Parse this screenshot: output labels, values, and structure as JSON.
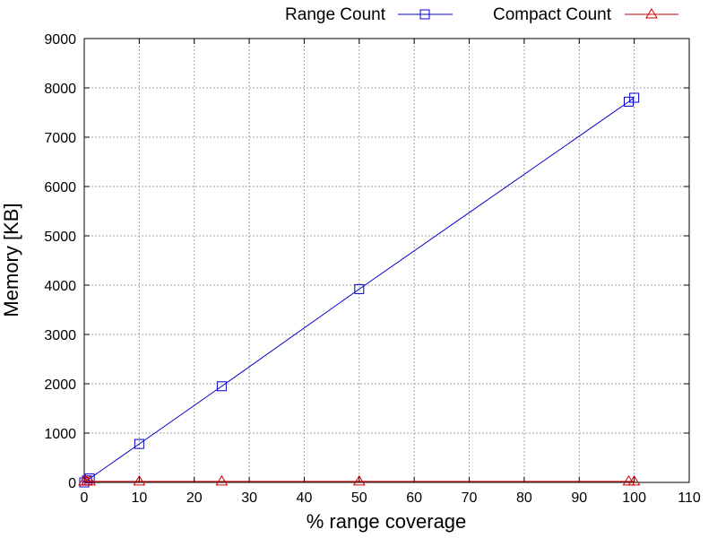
{
  "chart_data": {
    "type": "line",
    "xlabel": "% range coverage",
    "ylabel": "Memory [KB]",
    "xlim": [
      0,
      110
    ],
    "ylim": [
      0,
      9000
    ],
    "x_ticks": [
      0,
      10,
      20,
      30,
      40,
      50,
      60,
      70,
      80,
      90,
      100,
      110
    ],
    "y_ticks": [
      0,
      1000,
      2000,
      3000,
      4000,
      5000,
      6000,
      7000,
      8000,
      9000
    ],
    "grid": true,
    "legend_position": "top-outside",
    "series": [
      {
        "name": "Range Count",
        "color": "#0000cc",
        "marker": "square",
        "x": [
          0,
          0.5,
          1,
          10,
          25,
          50,
          99,
          100
        ],
        "y": [
          0,
          40,
          80,
          780,
          1950,
          3920,
          7720,
          7800
        ]
      },
      {
        "name": "Compact Count",
        "color": "#cc0000",
        "marker": "triangle",
        "x": [
          0,
          0.5,
          1,
          10,
          25,
          50,
          99,
          100
        ],
        "y": [
          20,
          20,
          20,
          20,
          20,
          20,
          20,
          20
        ]
      }
    ]
  }
}
